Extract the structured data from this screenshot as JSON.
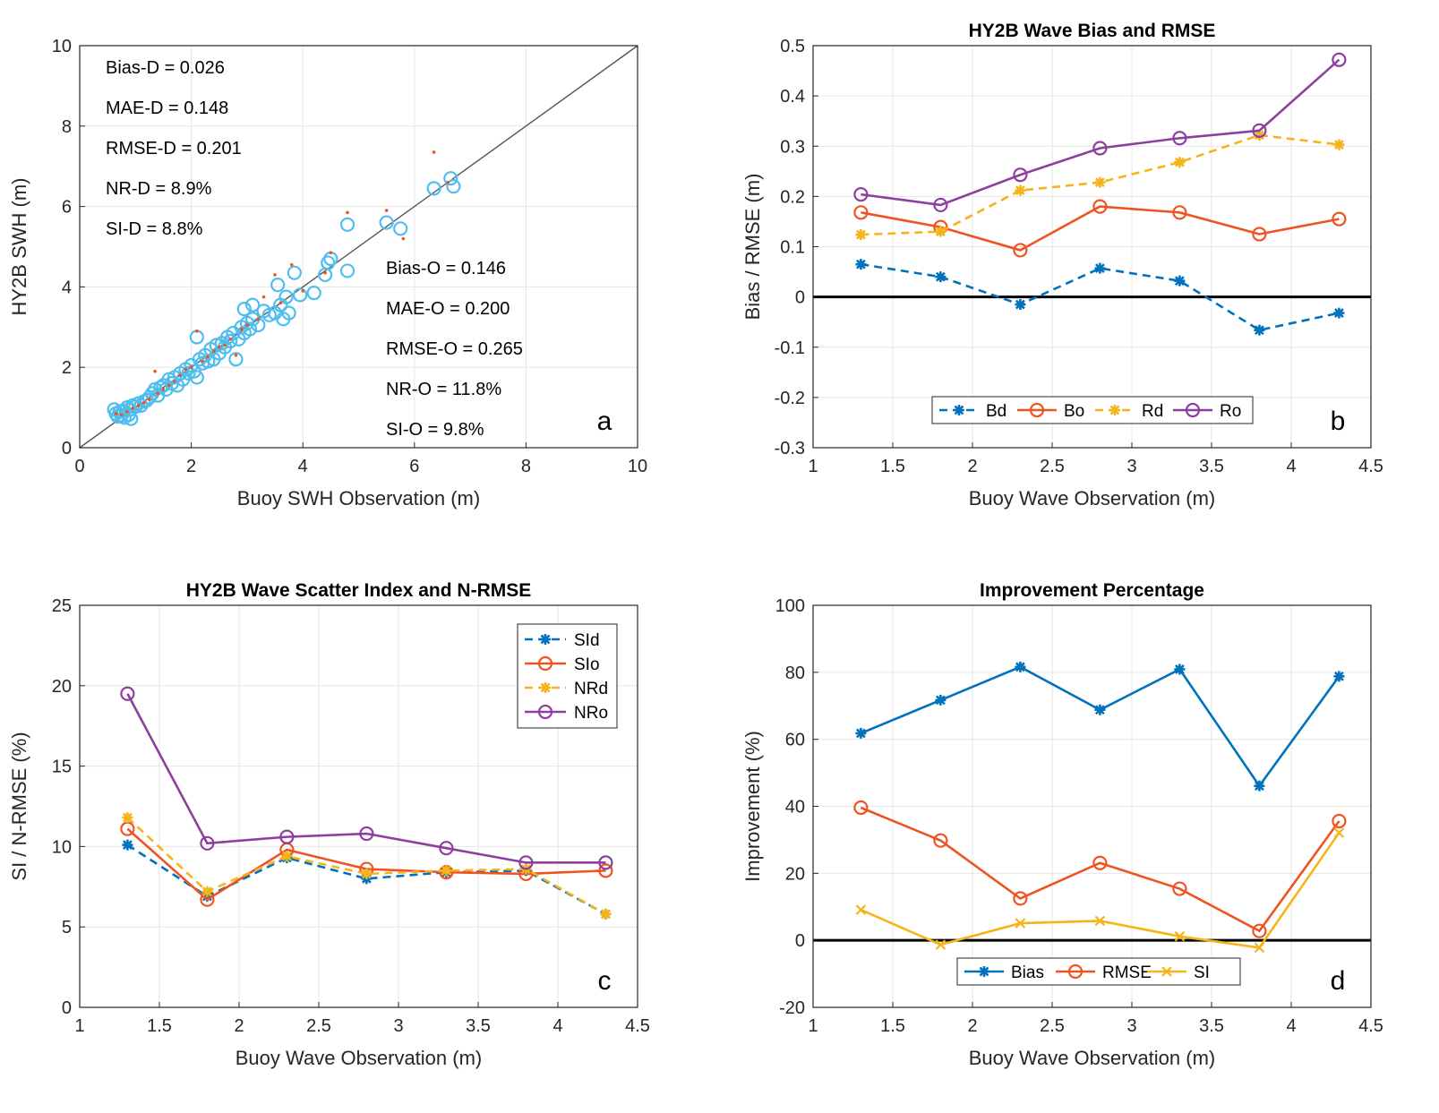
{
  "chart_data": [
    {
      "id": "a",
      "type": "scatter",
      "title": "",
      "xlabel": "Buoy SWH Observation (m)",
      "ylabel": "HY2B SWH (m)",
      "xlim": [
        0,
        10
      ],
      "ylim": [
        0,
        10
      ],
      "xticks": [
        "0",
        "2",
        "4",
        "6",
        "8",
        "10"
      ],
      "yticks": [
        "0",
        "2",
        "4",
        "6",
        "8",
        "10"
      ],
      "grid": true,
      "panel_letter": "a",
      "stats_d": [
        "Bias-D = 0.026",
        "MAE-D = 0.148",
        "RMSE-D = 0.201",
        "NR-D = 8.9%",
        "SI-D = 8.8%"
      ],
      "stats_o": [
        "Bias-O = 0.146",
        "MAE-O = 0.200",
        "RMSE-O = 0.265",
        "NR-O = 11.8%",
        "SI-O = 9.8%"
      ],
      "reference_line": [
        [
          0,
          0
        ],
        [
          10,
          10
        ]
      ],
      "series": [
        {
          "name": "original (circles)",
          "color": "#4DBEEE",
          "marker": "circle",
          "points": [
            [
              0.62,
              0.95
            ],
            [
              0.65,
              0.85
            ],
            [
              0.68,
              0.78
            ],
            [
              0.72,
              0.9
            ],
            [
              0.75,
              0.8
            ],
            [
              0.78,
              0.92
            ],
            [
              0.8,
              0.75
            ],
            [
              0.85,
              1.0
            ],
            [
              0.88,
              0.82
            ],
            [
              0.9,
              0.95
            ],
            [
              0.92,
              0.72
            ],
            [
              0.95,
              1.05
            ],
            [
              1.0,
              1.02
            ],
            [
              1.05,
              1.1
            ],
            [
              1.1,
              1.05
            ],
            [
              1.15,
              1.15
            ],
            [
              1.2,
              1.18
            ],
            [
              1.25,
              1.25
            ],
            [
              1.3,
              1.35
            ],
            [
              1.35,
              1.45
            ],
            [
              1.4,
              1.3
            ],
            [
              1.45,
              1.5
            ],
            [
              1.5,
              1.55
            ],
            [
              1.55,
              1.45
            ],
            [
              1.6,
              1.7
            ],
            [
              1.65,
              1.6
            ],
            [
              1.7,
              1.75
            ],
            [
              1.75,
              1.55
            ],
            [
              1.8,
              1.85
            ],
            [
              1.85,
              1.7
            ],
            [
              1.9,
              1.95
            ],
            [
              1.95,
              1.85
            ],
            [
              2.0,
              2.05
            ],
            [
              2.05,
              1.9
            ],
            [
              2.1,
              1.75
            ],
            [
              2.15,
              2.2
            ],
            [
              2.2,
              2.1
            ],
            [
              2.25,
              2.3
            ],
            [
              2.3,
              2.15
            ],
            [
              2.35,
              2.45
            ],
            [
              2.4,
              2.2
            ],
            [
              2.45,
              2.55
            ],
            [
              2.5,
              2.35
            ],
            [
              2.55,
              2.6
            ],
            [
              2.6,
              2.5
            ],
            [
              2.65,
              2.75
            ],
            [
              2.7,
              2.65
            ],
            [
              2.75,
              2.85
            ],
            [
              2.8,
              2.2
            ],
            [
              2.85,
              2.7
            ],
            [
              2.9,
              3.0
            ],
            [
              2.95,
              2.85
            ],
            [
              3.0,
              3.1
            ],
            [
              3.05,
              2.95
            ],
            [
              3.1,
              3.2
            ],
            [
              3.2,
              3.05
            ],
            [
              3.3,
              3.4
            ],
            [
              3.4,
              3.3
            ],
            [
              3.5,
              3.35
            ],
            [
              3.55,
              4.05
            ],
            [
              3.6,
              3.55
            ],
            [
              3.65,
              3.2
            ],
            [
              3.7,
              3.75
            ],
            [
              3.75,
              3.35
            ],
            [
              3.85,
              4.35
            ],
            [
              3.95,
              3.8
            ],
            [
              4.2,
              3.85
            ],
            [
              4.4,
              4.3
            ],
            [
              4.45,
              4.6
            ],
            [
              4.5,
              4.7
            ],
            [
              4.8,
              4.4
            ],
            [
              4.8,
              5.55
            ],
            [
              5.5,
              5.6
            ],
            [
              5.75,
              5.45
            ],
            [
              6.35,
              6.45
            ],
            [
              6.65,
              6.7
            ],
            [
              6.7,
              6.5
            ],
            [
              2.1,
              2.75
            ],
            [
              2.95,
              3.45
            ],
            [
              3.1,
              3.55
            ]
          ]
        },
        {
          "name": "corrected (dots)",
          "color": "#EF5320",
          "marker": "dot",
          "points": [
            [
              0.65,
              0.85
            ],
            [
              0.75,
              0.82
            ],
            [
              0.85,
              0.9
            ],
            [
              0.95,
              0.98
            ],
            [
              1.05,
              1.05
            ],
            [
              1.15,
              1.12
            ],
            [
              1.25,
              1.2
            ],
            [
              1.35,
              1.9
            ],
            [
              1.4,
              1.35
            ],
            [
              1.5,
              1.45
            ],
            [
              1.6,
              1.55
            ],
            [
              1.7,
              1.65
            ],
            [
              1.8,
              1.8
            ],
            [
              1.9,
              1.95
            ],
            [
              2.0,
              2.0
            ],
            [
              2.1,
              2.9
            ],
            [
              2.2,
              2.15
            ],
            [
              2.3,
              2.25
            ],
            [
              2.4,
              2.4
            ],
            [
              2.5,
              2.5
            ],
            [
              2.6,
              2.55
            ],
            [
              2.7,
              2.7
            ],
            [
              2.8,
              2.3
            ],
            [
              2.9,
              2.95
            ],
            [
              3.0,
              3.05
            ],
            [
              3.2,
              3.2
            ],
            [
              3.3,
              3.75
            ],
            [
              3.5,
              4.3
            ],
            [
              3.6,
              3.6
            ],
            [
              3.8,
              4.55
            ],
            [
              4.0,
              3.9
            ],
            [
              4.4,
              4.35
            ],
            [
              4.5,
              4.85
            ],
            [
              4.8,
              5.85
            ],
            [
              5.5,
              5.9
            ],
            [
              5.8,
              5.2
            ],
            [
              6.35,
              7.35
            ],
            [
              6.6,
              6.6
            ]
          ]
        }
      ]
    },
    {
      "id": "b",
      "type": "line",
      "title": "HY2B Wave Bias and RMSE",
      "xlabel": "Buoy Wave Observation (m)",
      "ylabel": "Bias / RMSE (m)",
      "xlim": [
        1,
        4.5
      ],
      "ylim": [
        -0.3,
        0.5
      ],
      "xticks": [
        "1",
        "1.5",
        "2",
        "2.5",
        "3",
        "3.5",
        "4",
        "4.5"
      ],
      "yticks": [
        "-0.3",
        "-0.2",
        "-0.1",
        "0",
        "0.1",
        "0.2",
        "0.3",
        "0.4",
        "0.5"
      ],
      "grid": true,
      "zero_line": true,
      "legend": "bottom-horizontal",
      "panel_letter": "b",
      "x": [
        1.3,
        1.8,
        2.3,
        2.8,
        3.3,
        3.8,
        4.3
      ],
      "series": [
        {
          "name": "Bd",
          "color": "#0072BD",
          "dash": true,
          "marker": "star",
          "values": [
            0.065,
            0.04,
            -0.015,
            0.057,
            0.032,
            -0.066,
            -0.032
          ]
        },
        {
          "name": "Bo",
          "color": "#EF5320",
          "dash": false,
          "marker": "circle",
          "values": [
            0.168,
            0.139,
            0.093,
            0.18,
            0.168,
            0.125,
            0.155
          ]
        },
        {
          "name": "Rd",
          "color": "#F4B41A",
          "dash": true,
          "marker": "star",
          "values": [
            0.124,
            0.13,
            0.212,
            0.228,
            0.268,
            0.322,
            0.303
          ]
        },
        {
          "name": "Ro",
          "color": "#8E3E9F",
          "dash": false,
          "marker": "circle",
          "values": [
            0.204,
            0.183,
            0.243,
            0.296,
            0.316,
            0.331,
            0.472
          ]
        }
      ]
    },
    {
      "id": "c",
      "type": "line",
      "title": "HY2B Wave Scatter Index and N-RMSE",
      "xlabel": "Buoy Wave Observation (m)",
      "ylabel": "SI / N-RMSE (%)",
      "xlim": [
        1,
        4.5
      ],
      "ylim": [
        0,
        25
      ],
      "xticks": [
        "1",
        "1.5",
        "2",
        "2.5",
        "3",
        "3.5",
        "4",
        "4.5"
      ],
      "yticks": [
        "0",
        "5",
        "10",
        "15",
        "20",
        "25"
      ],
      "grid": true,
      "legend": "top-right",
      "panel_letter": "c",
      "x": [
        1.3,
        1.8,
        2.3,
        2.8,
        3.3,
        3.8,
        4.3
      ],
      "series": [
        {
          "name": "SId",
          "color": "#0072BD",
          "dash": true,
          "marker": "star",
          "values": [
            10.1,
            6.9,
            9.3,
            8.0,
            8.4,
            8.5,
            5.8
          ]
        },
        {
          "name": "SIo",
          "color": "#EF5320",
          "dash": false,
          "marker": "circle",
          "values": [
            11.1,
            6.7,
            9.8,
            8.6,
            8.4,
            8.3,
            8.5
          ]
        },
        {
          "name": "NRd",
          "color": "#F4B41A",
          "dash": true,
          "marker": "star",
          "values": [
            11.8,
            7.2,
            9.4,
            8.3,
            8.5,
            8.6,
            5.8
          ]
        },
        {
          "name": "NRo",
          "color": "#8E3E9F",
          "dash": false,
          "marker": "circle",
          "values": [
            19.5,
            10.2,
            10.6,
            10.8,
            9.9,
            9.0,
            9.0
          ]
        }
      ]
    },
    {
      "id": "d",
      "type": "line",
      "title": "Improvement Percentage",
      "xlabel": "Buoy Wave Observation (m)",
      "ylabel": "Improvement (%)",
      "xlim": [
        1,
        4.5
      ],
      "ylim": [
        -20,
        100
      ],
      "xticks": [
        "1",
        "1.5",
        "2",
        "2.5",
        "3",
        "3.5",
        "4",
        "4.5"
      ],
      "yticks": [
        "-20",
        "0",
        "20",
        "40",
        "60",
        "80",
        "100"
      ],
      "grid": true,
      "zero_line": true,
      "legend": "bottom-horizontal",
      "panel_letter": "d",
      "x": [
        1.3,
        1.8,
        2.3,
        2.8,
        3.3,
        3.8,
        4.3
      ],
      "series": [
        {
          "name": "Bias",
          "color": "#0072BD",
          "dash": false,
          "marker": "star",
          "values": [
            61.8,
            71.7,
            81.6,
            68.8,
            80.9,
            46.1,
            78.8
          ]
        },
        {
          "name": "RMSE",
          "color": "#EF5320",
          "dash": false,
          "marker": "circle",
          "values": [
            39.6,
            29.8,
            12.5,
            23.1,
            15.4,
            2.8,
            35.6
          ]
        },
        {
          "name": "SI",
          "color": "#F4B41A",
          "dash": false,
          "marker": "x",
          "values": [
            9.1,
            -1.3,
            5.1,
            5.8,
            1.2,
            -2.2,
            32.1
          ]
        }
      ]
    }
  ]
}
